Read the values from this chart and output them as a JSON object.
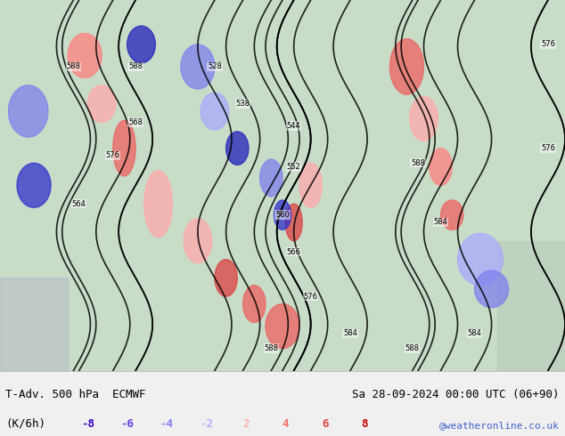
{
  "title_left": "T-Adv. 500 hPa  ECMWF",
  "title_right": "Sa 28-09-2024 00:00 UTC (06+90)",
  "unit_label": "(K/6h)",
  "website": "@weatheronline.co.uk",
  "colorbar_values": [
    -8,
    -6,
    -4,
    -2,
    2,
    4,
    6,
    8
  ],
  "colorbar_colors": [
    "#3b00c8",
    "#6040e0",
    "#8080f0",
    "#b0b0ff",
    "#ffb0b0",
    "#f07070",
    "#e04040",
    "#c80000"
  ],
  "bg_color": "#e8f5e8",
  "map_bg": "#c8e8c8",
  "footer_bg": "#f0f0f0",
  "fig_width": 6.34,
  "fig_height": 4.9,
  "dpi": 100
}
